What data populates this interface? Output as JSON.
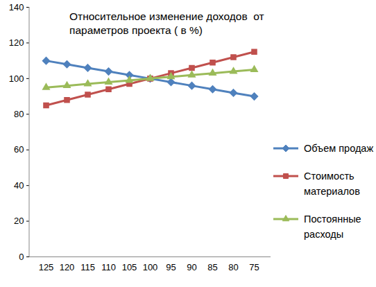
{
  "chart_data": {
    "type": "line",
    "title": "Относительное изменение доходов  от параметров проекта ( в %)",
    "categories": [
      125,
      120,
      115,
      110,
      105,
      100,
      95,
      90,
      85,
      80,
      75
    ],
    "series": [
      {
        "name": "Объем продаж",
        "color": "#4F81BD",
        "marker": "diamond",
        "values": [
          110,
          108,
          106,
          104,
          102,
          100,
          98,
          96,
          94,
          92,
          90
        ]
      },
      {
        "name": "Стоимость материалов",
        "color": "#C0504D",
        "marker": "square",
        "values": [
          85,
          88,
          91,
          94,
          97,
          100,
          103,
          106,
          109,
          112,
          115
        ]
      },
      {
        "name": "Постоянные расходы",
        "color": "#9BBB59",
        "marker": "triangle",
        "values": [
          95,
          96,
          97,
          98,
          99,
          100,
          101,
          102,
          103,
          104,
          105
        ]
      }
    ],
    "ylim": [
      0,
      140
    ],
    "yticks": [
      0,
      20,
      40,
      60,
      80,
      100,
      120,
      140
    ],
    "grid": false,
    "legend": "right"
  }
}
